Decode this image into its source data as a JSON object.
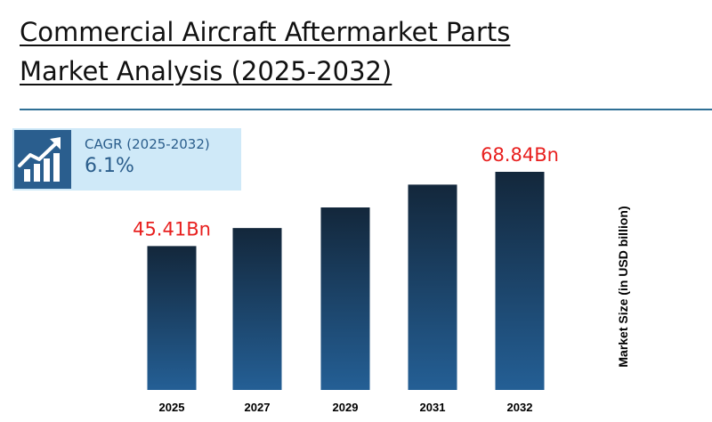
{
  "title_line1": "Commercial Aircraft Aftermarket Parts",
  "title_line2": "Market Analysis (2025-2032)",
  "cagr": {
    "label": "CAGR (2025-2032)",
    "value": "6.1%",
    "icon": "growth-chart-icon"
  },
  "colors": {
    "bar_top": "#13273b",
    "bar_bottom": "#245f95",
    "value_label": "#e8201f",
    "divider": "#2e6f95"
  },
  "chart_data": {
    "type": "bar",
    "title": "Commercial Aircraft Aftermarket Parts Market Analysis (2025-2032)",
    "categories": [
      "2025",
      "2027",
      "2029",
      "2031",
      "2032"
    ],
    "values": [
      45.41,
      51.1,
      57.6,
      64.8,
      68.84
    ],
    "data_labels": [
      "45.41Bn",
      "",
      "",
      "",
      "68.84Bn"
    ],
    "ylabel": "Market Size (in USD billion)",
    "xlabel": "",
    "ylim": [
      0,
      68.84
    ],
    "grid": false,
    "legend": "none"
  }
}
